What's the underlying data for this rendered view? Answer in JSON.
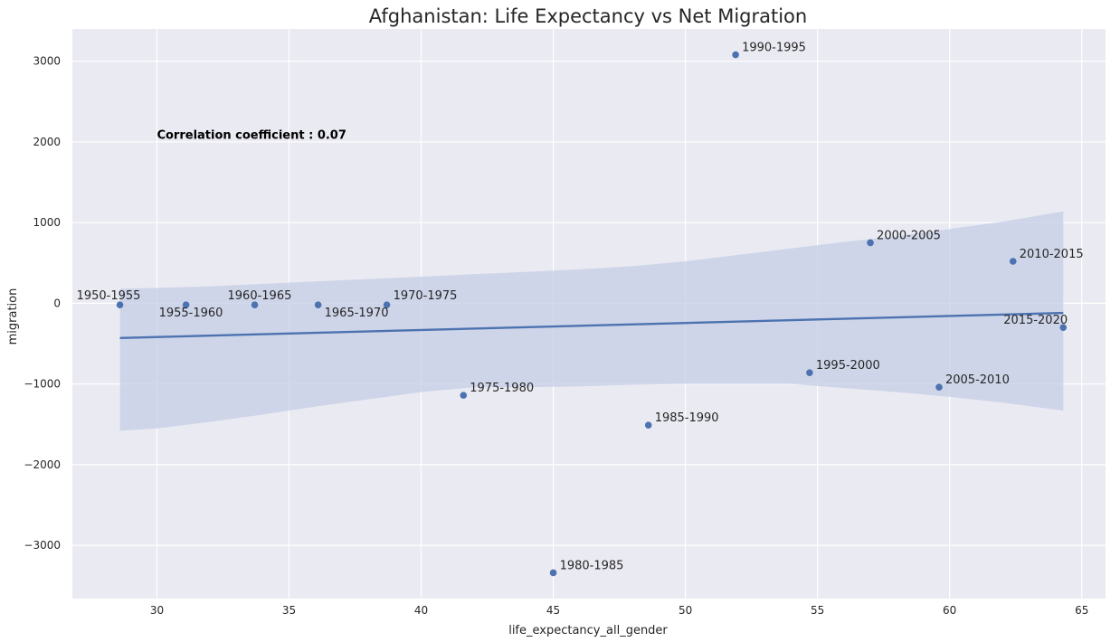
{
  "chart_data": {
    "type": "scatter",
    "title": "Afghanistan: Life Expectancy vs Net Migration",
    "xlabel": "life_expectancy_all_gender",
    "ylabel": "migration",
    "xlim": [
      26.8,
      65.9
    ],
    "ylim": [
      -3660,
      3400
    ],
    "x_ticks": [
      30,
      35,
      40,
      45,
      50,
      55,
      60,
      65
    ],
    "y_ticks": [
      -3000,
      -2000,
      -1000,
      0,
      1000,
      2000,
      3000
    ],
    "y_tick_labels": [
      "−3000",
      "−2000",
      "−1000",
      "0",
      "1000",
      "2000",
      "3000"
    ],
    "grid": true,
    "annotation": "Correlation coefficient : 0.07",
    "annotation_pos": [
      30.0,
      2040
    ],
    "points": [
      {
        "label": "1950-1955",
        "x": 28.6,
        "y": -20
      },
      {
        "label": "1955-1960",
        "x": 31.1,
        "y": -20
      },
      {
        "label": "1960-1965",
        "x": 33.7,
        "y": -20
      },
      {
        "label": "1965-1970",
        "x": 36.1,
        "y": -20
      },
      {
        "label": "1970-1975",
        "x": 38.7,
        "y": -20
      },
      {
        "label": "1975-1980",
        "x": 41.6,
        "y": -1140
      },
      {
        "label": "1980-1985",
        "x": 45.0,
        "y": -3340
      },
      {
        "label": "1985-1990",
        "x": 48.6,
        "y": -1510
      },
      {
        "label": "1990-1995",
        "x": 51.9,
        "y": 3080
      },
      {
        "label": "1995-2000",
        "x": 54.7,
        "y": -860
      },
      {
        "label": "2000-2005",
        "x": 57.0,
        "y": 750
      },
      {
        "label": "2005-2010",
        "x": 59.6,
        "y": -1040
      },
      {
        "label": "2010-2015",
        "x": 62.4,
        "y": 520
      },
      {
        "label": "2015-2020",
        "x": 64.3,
        "y": -300
      }
    ],
    "regression_line": {
      "x": [
        28.6,
        64.3
      ],
      "y": [
        -430,
        -120
      ]
    },
    "confidence_band": {
      "x": [
        28.6,
        30.0,
        32.0,
        34.0,
        36.0,
        38.0,
        40.0,
        42.0,
        44.0,
        46.0,
        48.0,
        50.0,
        52.0,
        54.0,
        56.0,
        58.0,
        60.0,
        62.0,
        64.3
      ],
      "upper": [
        180,
        190,
        210,
        240,
        270,
        300,
        330,
        360,
        390,
        420,
        460,
        520,
        600,
        680,
        760,
        830,
        920,
        1010,
        1140
      ],
      "lower": [
        -1580,
        -1550,
        -1470,
        -1380,
        -1280,
        -1190,
        -1100,
        -1040,
        -1040,
        -1030,
        -1010,
        -1000,
        -1000,
        -1000,
        -1050,
        -1100,
        -1160,
        -1230,
        -1330
      ]
    },
    "colors": {
      "background": "#eaeaf2",
      "grid": "#ffffff",
      "point": "#4c72b0",
      "line": "#4c72b0",
      "band": "#c4cde6"
    }
  }
}
